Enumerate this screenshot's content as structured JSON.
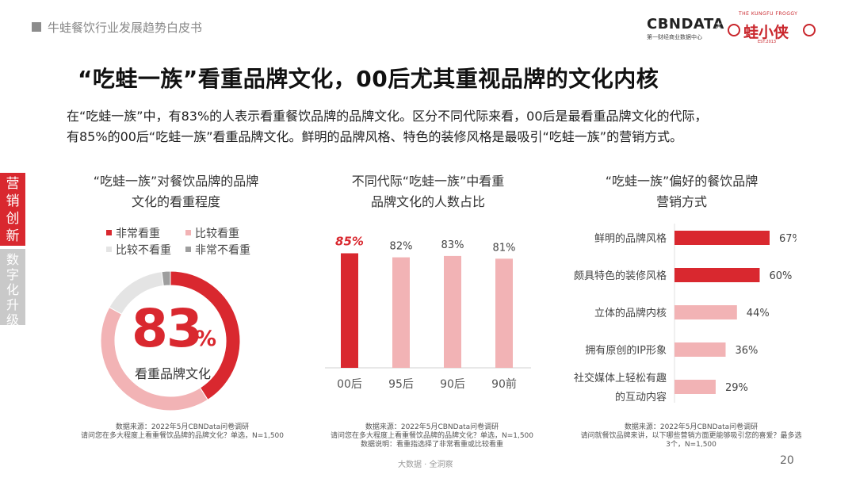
{
  "header": {
    "report_title": "牛蛙餐饮行业发展趋势白皮书",
    "cbn_logo_text": "CBNDATA",
    "cbn_logo_sub": "第一财经商业数据中心",
    "times": "×",
    "partner_arc": "THE KUNGFU FROGGY",
    "partner_name": "蛙小侠",
    "partner_est": "EST.2013"
  },
  "headline": "“吃蛙一族”看重品牌文化，00后尤其重视品牌的文化内核",
  "intro": {
    "line1": "在“吃蛙一族”中，有83%的人表示看重餐饮品牌的品牌文化。区分不同代际来看，00后是最看重品牌文化的代际，",
    "line2": "有85%的00后“吃蛙一族”看重品牌文化。鲜明的品牌风格、特色的装修风格是最吸引“吃蛙一族”的营销方式。"
  },
  "side_tabs": {
    "active": [
      "营",
      "销",
      "创",
      "新"
    ],
    "inactive": [
      "数",
      "字",
      "化",
      "升",
      "级"
    ]
  },
  "colors": {
    "accent_red": "#d9282f",
    "light_pink": "#f2b3b5",
    "light_gray": "#e4e4e4",
    "mid_gray": "#9e9e9e"
  },
  "panel1": {
    "title_line1": "“吃蛙一族”对餐饮品牌的品牌",
    "title_line2": "文化的看重程度",
    "center_value": "83",
    "center_unit": "%",
    "center_label": "看重品牌文化",
    "footnote_line1": "数据来源：2022年5月CBNData问卷调研",
    "footnote_line2": "请问您在多大程度上看重餐饮品牌的品牌文化？单选，N=1,500"
  },
  "panel2": {
    "title_line1": "不同代际“吃蛙一族”中看重",
    "title_line2": "品牌文化的人数占比",
    "footnote_line1": "数据来源：2022年5月CBNData问卷调研",
    "footnote_line2": "请问您在多大程度上看重餐饮品牌的品牌文化？单选，N=1,500",
    "footnote_line3": "数据说明：看重指选择了非常看重或比较看重"
  },
  "panel3": {
    "title_line1": "“吃蛙一族”偏好的餐饮品牌",
    "title_line2": "营销方式",
    "footnote_line1": "数据来源：2022年5月CBNData问卷调研",
    "footnote_line2": "请问就餐饮品牌来讲，以下哪些营销方面更能够吸引您的喜爱？最多选",
    "footnote_line3": "3个，N=1,500"
  },
  "chart_data": [
    {
      "type": "pie",
      "categories": [
        "非常看重",
        "比较看重",
        "比较不看重",
        "非常不看重"
      ],
      "values": [
        41,
        42,
        15,
        2
      ],
      "legend": "top",
      "colors": [
        "#d9282f",
        "#f2b3b5",
        "#e4e4e4",
        "#9e9e9e"
      ]
    },
    {
      "type": "bar",
      "categories": [
        "00后",
        "95后",
        "90后",
        "90前"
      ],
      "values": [
        85,
        82,
        83,
        81
      ],
      "value_labels": [
        "85%",
        "82%",
        "83%",
        "81%"
      ],
      "ylim": [
        0,
        100
      ],
      "colors": [
        "#d9282f",
        "#f2b3b5",
        "#f2b3b5",
        "#f2b3b5"
      ],
      "highlight_index": 0
    },
    {
      "type": "bar",
      "orientation": "horizontal",
      "categories": [
        "鲜明的品牌风格",
        "颇具特色的装修风格",
        "立体的品牌内核",
        "拥有原创的IP形象",
        "社交媒体上轻松有趣的互动内容"
      ],
      "category_lines": [
        [
          "鲜明的品牌风格"
        ],
        [
          "颇具特色的装修风格"
        ],
        [
          "立体的品牌内核"
        ],
        [
          "拥有原创的IP形象"
        ],
        [
          "社交媒体上轻松有趣",
          "的互动内容"
        ]
      ],
      "values": [
        67,
        60,
        44,
        36,
        29
      ],
      "value_labels": [
        "67%",
        "60%",
        "44%",
        "36%",
        "29%"
      ],
      "colors": [
        "#d9282f",
        "#d9282f",
        "#f2b3b5",
        "#f2b3b5",
        "#f2b3b5"
      ]
    }
  ],
  "footer": {
    "center_text": "大数据 · 全洞察",
    "page_number": "20"
  }
}
